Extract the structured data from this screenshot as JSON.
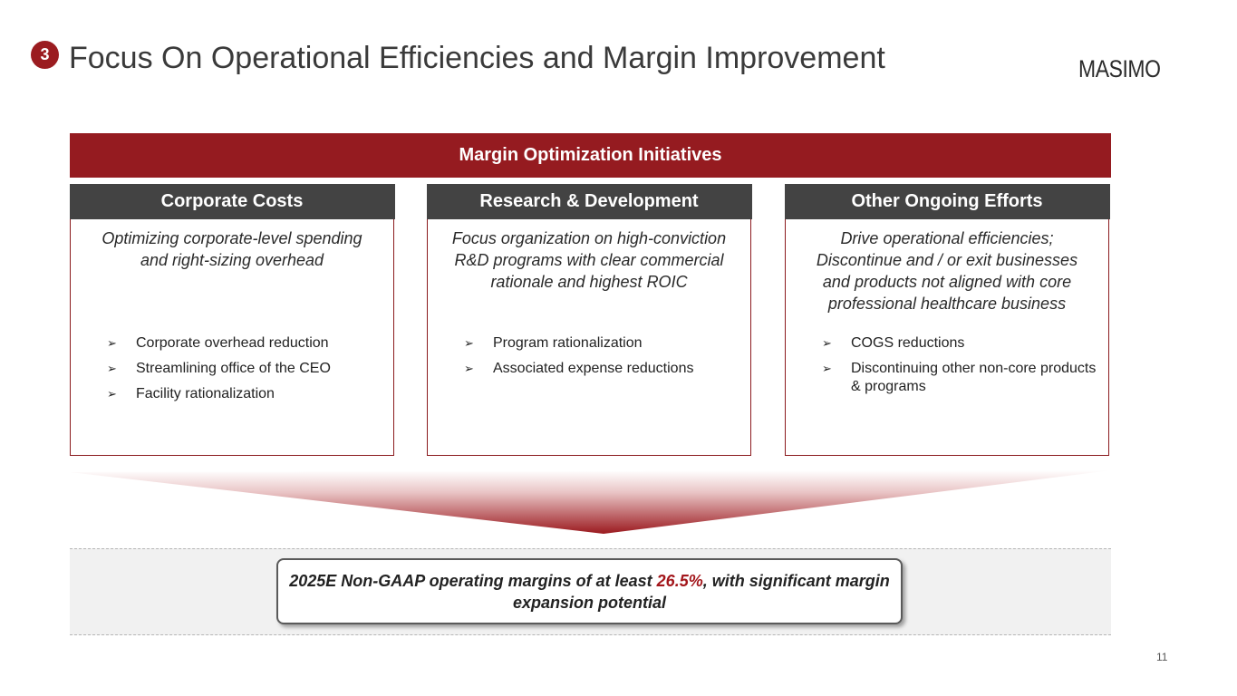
{
  "header": {
    "section_number": "3",
    "title": "Focus On Operational Efficiencies and Margin Improvement",
    "logo_text": "MASIMO"
  },
  "banner": {
    "label": "Margin Optimization Initiatives"
  },
  "columns": [
    {
      "heading": "Corporate Costs",
      "subtitle": "Optimizing corporate-level spending and right-sizing overhead",
      "bullets": [
        "Corporate overhead reduction",
        "Streamlining office of the CEO",
        "Facility rationalization"
      ]
    },
    {
      "heading": "Research & Development",
      "subtitle": "Focus organization on high-conviction R&D programs with clear commercial rationale and highest ROIC",
      "bullets": [
        "Program rationalization",
        "Associated expense reductions"
      ]
    },
    {
      "heading": "Other Ongoing Efforts",
      "subtitle": "Drive operational efficiencies; Discontinue and / or exit businesses and products not aligned with core professional healthcare business",
      "bullets": [
        "COGS reductions",
        "Discontinuing other non-core products & programs"
      ]
    }
  ],
  "callout": {
    "text_before": "2025E Non-GAAP operating margins of at least ",
    "highlight": "26.5%",
    "text_after": ", with significant margin expansion potential"
  },
  "page_number": "11",
  "colors": {
    "brand_red": "#951b20",
    "header_gray": "#434343",
    "highlight_red": "#a3161b"
  }
}
